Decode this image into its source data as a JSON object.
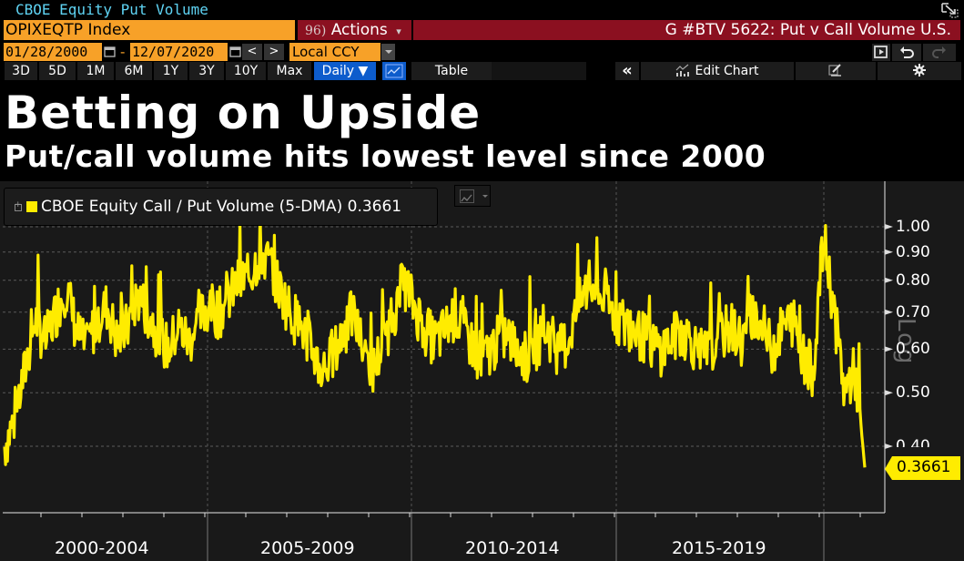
{
  "window": {
    "title": "CBOE Equity Put Volume",
    "popout_icon": "popout-icon"
  },
  "toolbar": {
    "ticker": "OPIXEQTP Index",
    "actions_number": "96)",
    "actions_label": "Actions",
    "actions_caret": "▾",
    "chart_title": "G #BTV 5622: Put v Call Volume U.S.",
    "start_date": "01/28/2000",
    "end_date": "12/07/2020",
    "date_separator": "-",
    "prev_label": "<",
    "next_label": ">",
    "currency": "Local CCY",
    "periods": [
      "3D",
      "5D",
      "1M",
      "6M",
      "1Y",
      "3Y",
      "10Y",
      "Max"
    ],
    "frequency": "Daily ▼",
    "table_label": "Table",
    "collapse_label": "«",
    "edit_chart_label": "Edit Chart"
  },
  "headline": "Betting on Upside",
  "subheadline": "Put/call volume hits lowest level since 2000",
  "legend": {
    "label": "CBOE Equity Call / Put Volume (5-DMA) 0.3661",
    "color": "#ffec00"
  },
  "axis": {
    "scale_label": "Log",
    "last_value": "0.3661"
  },
  "colors": {
    "series": "#ffec00",
    "background": "#191919",
    "accent_orange": "#f7a128",
    "accent_red": "#8b1020",
    "accent_blue": "#0d5ccc",
    "window_title": "#5fd4f4"
  },
  "chart_data": {
    "type": "line",
    "title": "Betting on Upside",
    "subtitle": "Put/call volume hits lowest level since 2000",
    "series": [
      {
        "name": "CBOE Equity Call / Put Volume (5-DMA)",
        "last_value": 0.3661,
        "color": "#ffec00",
        "approx_quarterly_values": [
          0.4,
          0.45,
          0.55,
          0.68,
          0.62,
          0.7,
          0.78,
          0.65,
          0.6,
          0.68,
          0.72,
          0.62,
          0.66,
          0.75,
          0.7,
          0.64,
          0.6,
          0.66,
          0.62,
          0.68,
          0.72,
          0.7,
          0.75,
          0.8,
          0.82,
          0.9,
          0.85,
          0.76,
          0.7,
          0.66,
          0.6,
          0.55,
          0.58,
          0.64,
          0.7,
          0.6,
          0.55,
          0.62,
          0.7,
          0.8,
          0.72,
          0.66,
          0.62,
          0.65,
          0.7,
          0.64,
          0.6,
          0.58,
          0.62,
          0.64,
          0.6,
          0.58,
          0.62,
          0.65,
          0.6,
          0.62,
          0.72,
          0.78,
          0.76,
          0.72,
          0.68,
          0.66,
          0.64,
          0.62,
          0.6,
          0.62,
          0.65,
          0.63,
          0.58,
          0.6,
          0.64,
          0.66,
          0.62,
          0.7,
          0.65,
          0.6,
          0.66,
          0.68,
          0.58,
          0.55,
          0.95,
          0.7,
          0.5,
          0.55,
          0.3661
        ]
      }
    ],
    "x_tick_labels": [
      "2000-2004",
      "2005-2009",
      "2010-2014",
      "2015-2019"
    ],
    "x_range": [
      "01/28/2000",
      "12/07/2020"
    ],
    "y_tick_labels": [
      "1.00",
      "0.90",
      "0.80",
      "0.70",
      "0.60",
      "0.50",
      "0.40"
    ],
    "y_ticks": [
      1.0,
      0.9,
      0.8,
      0.7,
      0.6,
      0.5,
      0.4
    ],
    "ylim": [
      0.34,
      1.08
    ],
    "y_scale": "log",
    "grid": true,
    "legend_position": "top-left",
    "annotations": [
      "0.3661"
    ]
  }
}
